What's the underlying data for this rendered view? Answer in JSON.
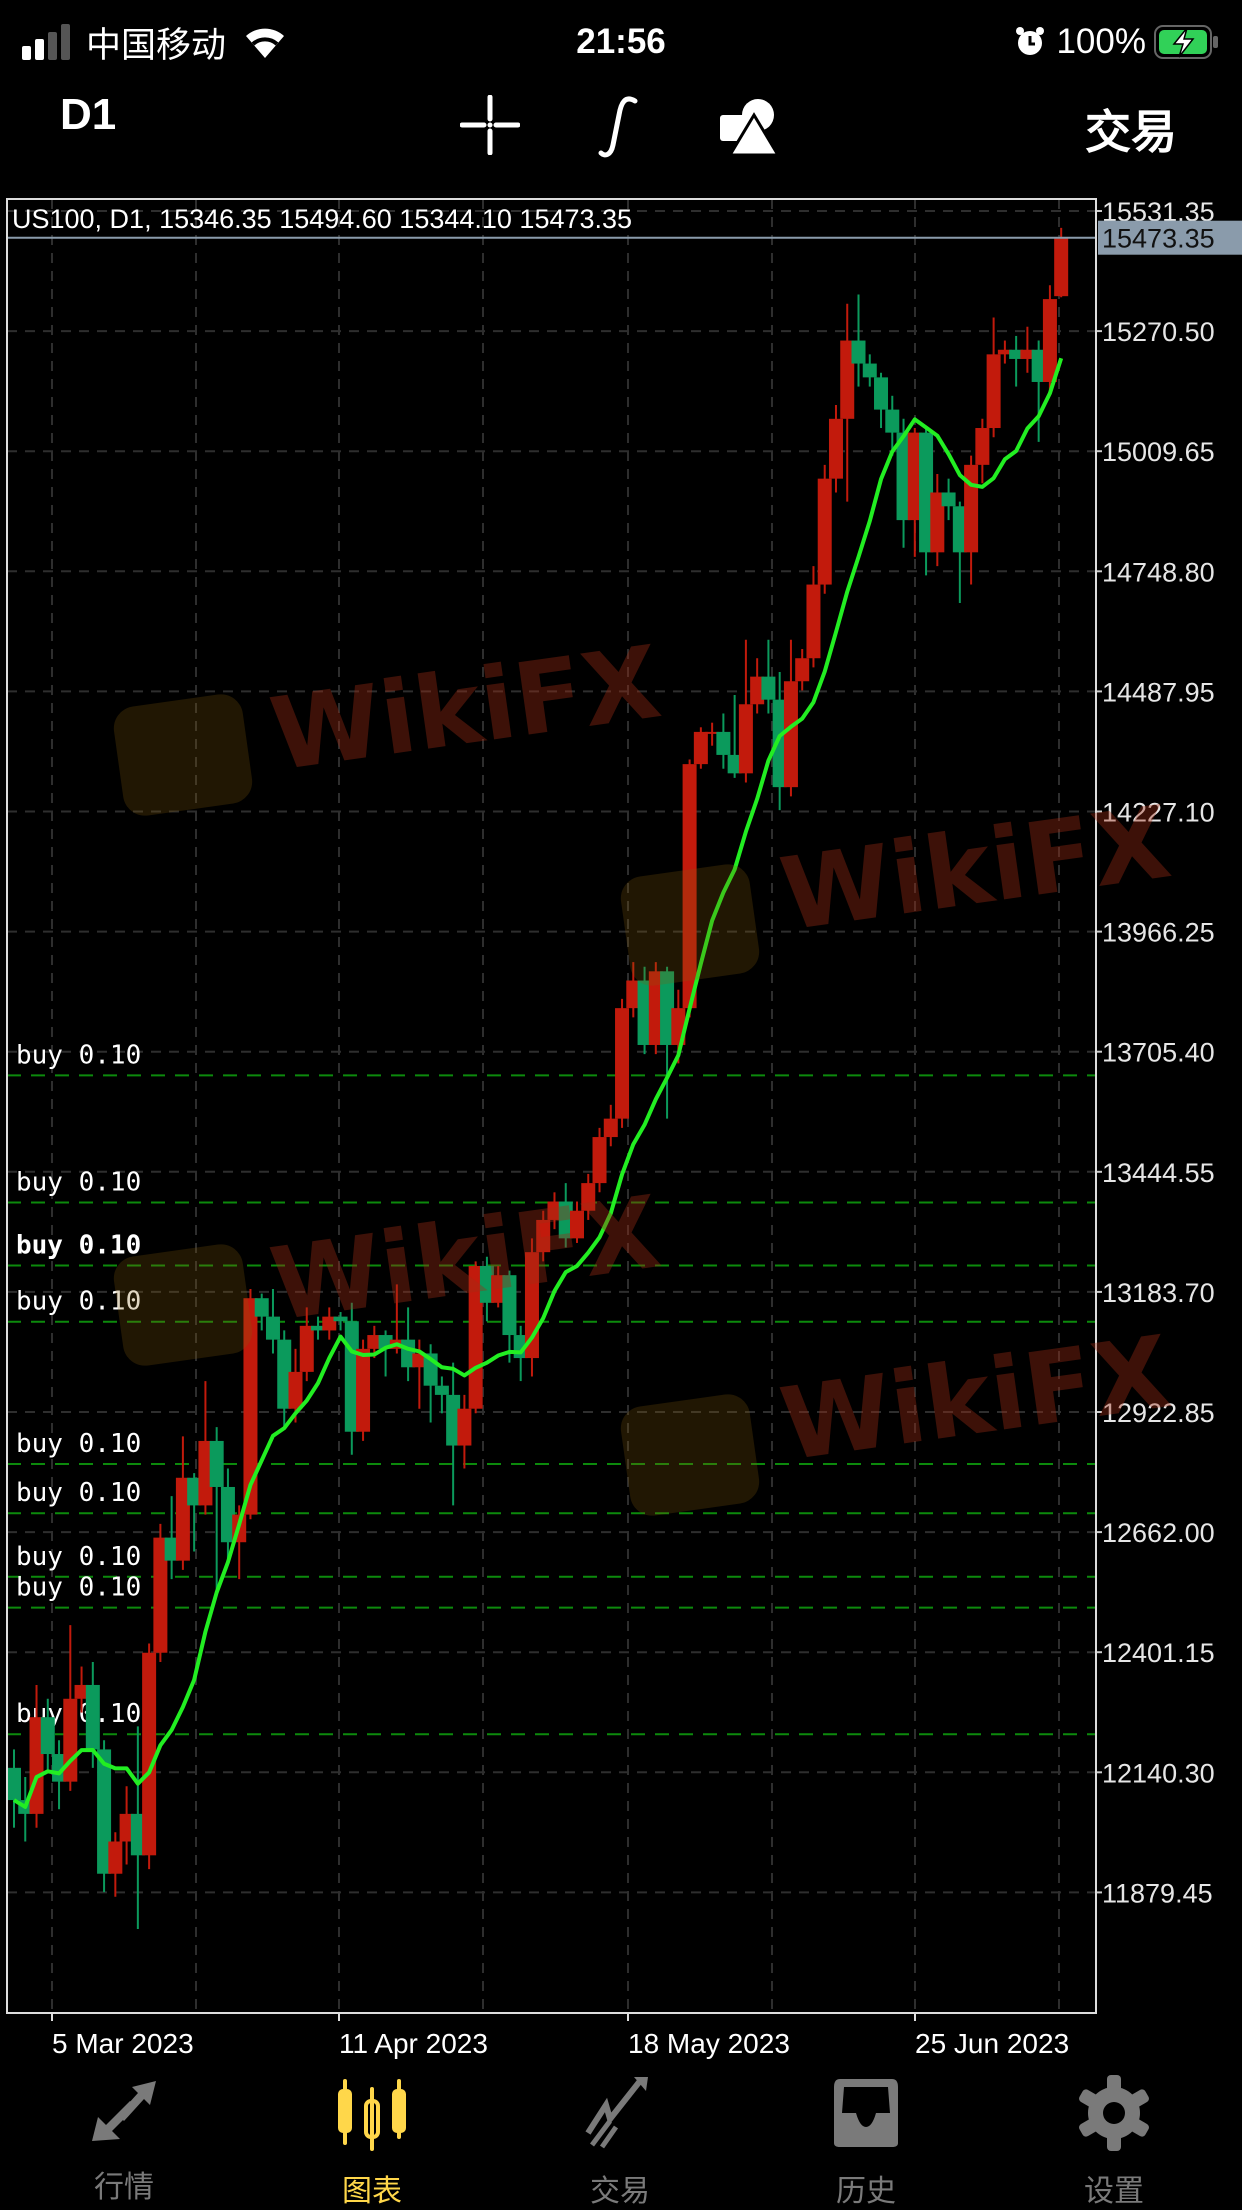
{
  "status_bar": {
    "carrier": "中国移动",
    "time": "21:56",
    "battery": "100%"
  },
  "toolbar": {
    "timeframe": "D1",
    "trade_label": "交易",
    "icons": [
      "crosshair-icon",
      "function-icon",
      "objects-icon"
    ]
  },
  "chart": {
    "info": "US100, D1, 15346.35 15494.60 15344.10 15473.35",
    "current_price": "15473.35",
    "watermark": "WikiFX",
    "colors": {
      "bull": "#c21a0c",
      "bear": "#0b9a5c",
      "ma": "#22ee22",
      "order_line": "#0c8a0c",
      "price_line": "#8a9bab"
    },
    "price_ticks": [
      "15531.35",
      "15270.50",
      "15009.65",
      "14748.80",
      "14487.95",
      "14227.10",
      "13966.25",
      "13705.40",
      "13444.55",
      "13183.70",
      "12922.85",
      "12662.00",
      "12401.15",
      "12140.30",
      "11879.45"
    ],
    "date_labels": [
      "5 Mar 2023",
      "11 Apr 2023",
      "18 May 2023",
      "25 Jun 2023"
    ],
    "orders": [
      {
        "label": "buy 0.10",
        "price": 13654
      },
      {
        "label": "buy 0.10",
        "price": 13378
      },
      {
        "label": "buy 0.10",
        "price": 13241
      },
      {
        "label": "buy 0.10",
        "price": 13119
      },
      {
        "label": "buy 0.10",
        "price": 12810
      },
      {
        "label": "buy 0.10",
        "price": 12703
      },
      {
        "label": "buy 0.10",
        "price": 12565
      },
      {
        "label": "buy 0.10",
        "price": 12498
      },
      {
        "label": "buy 0.10",
        "price": 12223
      }
    ]
  },
  "chart_data": {
    "type": "candlestick",
    "symbol": "US100",
    "timeframe": "D1",
    "ylim": [
      11700,
      15620
    ],
    "ohlc": [
      [
        12150,
        12190,
        12020,
        12080
      ],
      [
        12080,
        12130,
        11990,
        12050
      ],
      [
        12050,
        12330,
        12020,
        12260
      ],
      [
        12260,
        12300,
        12140,
        12180
      ],
      [
        12180,
        12210,
        12060,
        12120
      ],
      [
        12120,
        12460,
        12100,
        12300
      ],
      [
        12300,
        12370,
        12270,
        12330
      ],
      [
        12330,
        12380,
        12150,
        12190
      ],
      [
        12190,
        12210,
        11880,
        11920
      ],
      [
        11920,
        12010,
        11870,
        11990
      ],
      [
        11990,
        12110,
        11940,
        12050
      ],
      [
        12050,
        12240,
        11800,
        11960
      ],
      [
        11960,
        12420,
        11930,
        12400
      ],
      [
        12400,
        12680,
        12380,
        12650
      ],
      [
        12650,
        12740,
        12560,
        12600
      ],
      [
        12600,
        12870,
        12580,
        12780
      ],
      [
        12780,
        12790,
        12620,
        12720
      ],
      [
        12720,
        12990,
        12700,
        12860
      ],
      [
        12860,
        12890,
        12530,
        12760
      ],
      [
        12760,
        12800,
        12600,
        12640
      ],
      [
        12640,
        12720,
        12560,
        12700
      ],
      [
        12700,
        13190,
        12690,
        13170
      ],
      [
        13170,
        13180,
        13100,
        13130
      ],
      [
        13130,
        13190,
        13050,
        13080
      ],
      [
        13080,
        13100,
        12890,
        12930
      ],
      [
        12930,
        13060,
        12900,
        13010
      ],
      [
        13010,
        13150,
        12990,
        13110
      ],
      [
        13110,
        13130,
        13080,
        13100
      ],
      [
        13100,
        13150,
        13080,
        13130
      ],
      [
        13130,
        13140,
        13100,
        13120
      ],
      [
        13120,
        13160,
        12830,
        12880
      ],
      [
        12880,
        13080,
        12860,
        13060
      ],
      [
        13060,
        13110,
        13040,
        13090
      ],
      [
        13090,
        13100,
        13000,
        13060
      ],
      [
        13060,
        13200,
        13050,
        13080
      ],
      [
        13080,
        13150,
        12990,
        13020
      ],
      [
        13020,
        13080,
        12930,
        13050
      ],
      [
        13050,
        13070,
        12900,
        12980
      ],
      [
        12980,
        13000,
        12920,
        12960
      ],
      [
        12960,
        13030,
        12720,
        12850
      ],
      [
        12850,
        12960,
        12800,
        12930
      ],
      [
        12930,
        13250,
        12920,
        13240
      ],
      [
        13240,
        13260,
        13120,
        13160
      ],
      [
        13160,
        13240,
        13150,
        13220
      ],
      [
        13220,
        13230,
        13030,
        13090
      ],
      [
        13090,
        13110,
        12990,
        13040
      ],
      [
        13040,
        13300,
        13000,
        13270
      ],
      [
        13270,
        13360,
        13250,
        13340
      ],
      [
        13340,
        13400,
        13320,
        13380
      ],
      [
        13380,
        13420,
        13280,
        13300
      ],
      [
        13300,
        13380,
        13290,
        13360
      ],
      [
        13360,
        13440,
        13340,
        13420
      ],
      [
        13420,
        13540,
        13400,
        13520
      ],
      [
        13520,
        13590,
        13500,
        13560
      ],
      [
        13560,
        13820,
        13540,
        13800
      ],
      [
        13800,
        13900,
        13780,
        13860
      ],
      [
        13860,
        13890,
        13700,
        13720
      ],
      [
        13720,
        13900,
        13700,
        13880
      ],
      [
        13880,
        13890,
        13560,
        13720
      ],
      [
        13720,
        13840,
        13680,
        13800
      ],
      [
        13800,
        14340,
        13780,
        14330
      ],
      [
        14330,
        14410,
        14320,
        14400
      ],
      [
        14400,
        14420,
        14370,
        14400
      ],
      [
        14400,
        14440,
        14320,
        14350
      ],
      [
        14350,
        14480,
        14300,
        14310
      ],
      [
        14310,
        14600,
        14290,
        14460
      ],
      [
        14460,
        14560,
        14440,
        14520
      ],
      [
        14520,
        14600,
        14440,
        14470
      ],
      [
        14470,
        14530,
        14230,
        14280
      ],
      [
        14280,
        14600,
        14260,
        14510
      ],
      [
        14510,
        14580,
        14490,
        14560
      ],
      [
        14560,
        14760,
        14540,
        14720
      ],
      [
        14720,
        14980,
        14700,
        14950
      ],
      [
        14950,
        15110,
        14920,
        15080
      ],
      [
        15080,
        15330,
        14900,
        15250
      ],
      [
        15250,
        15350,
        15150,
        15200
      ],
      [
        15200,
        15220,
        15150,
        15170
      ],
      [
        15170,
        15180,
        15060,
        15100
      ],
      [
        15100,
        15130,
        15000,
        15050
      ],
      [
        15050,
        15080,
        14800,
        14860
      ],
      [
        14860,
        15060,
        14780,
        15050
      ],
      [
        15050,
        15060,
        14740,
        14790
      ],
      [
        14790,
        14960,
        14760,
        14920
      ],
      [
        14920,
        14950,
        14860,
        14890
      ],
      [
        14890,
        14900,
        14680,
        14790
      ],
      [
        14790,
        15000,
        14720,
        14980
      ],
      [
        14980,
        15080,
        14940,
        15060
      ],
      [
        15060,
        15300,
        15040,
        15220
      ],
      [
        15220,
        15250,
        15200,
        15230
      ],
      [
        15230,
        15260,
        15150,
        15210
      ],
      [
        15210,
        15280,
        15180,
        15230
      ],
      [
        15230,
        15250,
        15030,
        15160
      ],
      [
        15160,
        15370,
        15140,
        15340
      ],
      [
        15346.35,
        15494.6,
        15344.1,
        15473.35
      ]
    ]
  },
  "bottom_nav": [
    {
      "label": "行情",
      "icon": "quotes-icon",
      "active": false
    },
    {
      "label": "图表",
      "icon": "chart-candles-icon",
      "active": true
    },
    {
      "label": "交易",
      "icon": "trade-icon",
      "active": false
    },
    {
      "label": "历史",
      "icon": "history-icon",
      "active": false
    },
    {
      "label": "设置",
      "icon": "settings-icon",
      "active": false
    }
  ]
}
